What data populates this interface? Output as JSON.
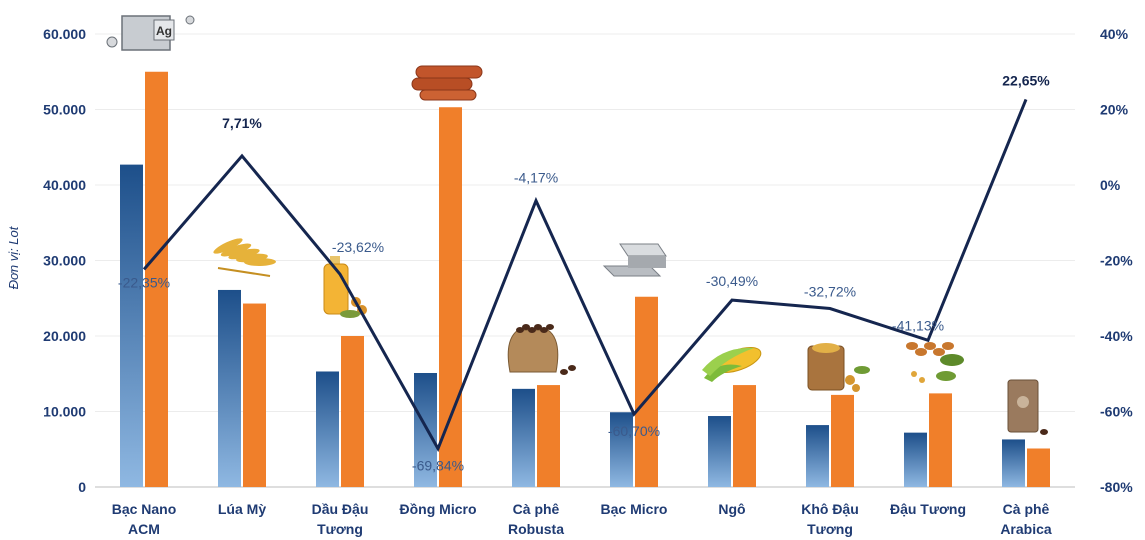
{
  "chart_data": {
    "type": "bar",
    "ylabel": "Đơn vị: Lot",
    "categories": [
      [
        "Bạc Nano",
        "ACM"
      ],
      [
        "Lúa Mỳ"
      ],
      [
        "Dầu Đậu",
        "Tương"
      ],
      [
        "Đồng Micro"
      ],
      [
        "Cà phê",
        "Robusta"
      ],
      [
        "Bạc Micro"
      ],
      [
        "Ngô"
      ],
      [
        "Khô Đậu",
        "Tương"
      ],
      [
        "Đậu Tương"
      ],
      [
        "Cà phê",
        "Arabica"
      ]
    ],
    "series": [
      {
        "values": [
          42700,
          26100,
          15300,
          15100,
          13000,
          9900,
          9400,
          8200,
          7200,
          6300
        ]
      },
      {
        "values": [
          55000,
          24300,
          20000,
          50300,
          13500,
          25200,
          13500,
          12200,
          12400,
          5100
        ]
      }
    ],
    "line": {
      "values": [
        -22.35,
        7.71,
        -23.62,
        -69.84,
        -4.17,
        -60.7,
        -30.49,
        -32.72,
        -41.13,
        22.65
      ],
      "labels": [
        "-22,35%",
        "7,71%",
        "-23,62%",
        "-69,84%",
        "-4,17%",
        "-60,70%",
        "-30,49%",
        "-32,72%",
        "-41,13%",
        "22,65%"
      ],
      "bold": [
        false,
        true,
        false,
        false,
        false,
        false,
        false,
        false,
        false,
        true
      ]
    },
    "yleft": {
      "min": 0,
      "max": 60000,
      "ticks": [
        "0",
        "10.000",
        "20.000",
        "30.000",
        "40.000",
        "50.000",
        "60.000"
      ]
    },
    "yright": {
      "min": -80,
      "max": 40,
      "ticks": [
        "-80%",
        "-60%",
        "-40%",
        "-20%",
        "0%",
        "20%",
        "40%"
      ]
    },
    "colors": {
      "series1_top": "#1d4f8a",
      "series1_bottom": "#8fb8e2",
      "series2": "#f07f2a",
      "line": "#15264f",
      "text": "#1f3b73"
    },
    "icons": [
      "silver-ag-cube-icon",
      "wheat-icon",
      "soybean-oil-bottle-icon",
      "copper-pipes-icon",
      "coffee-bean-sack-icon",
      "silver-bars-icon",
      "corn-icon",
      "soybean-meal-sack-icon",
      "soybean-plant-icon",
      "coffee-bag-icon"
    ]
  }
}
